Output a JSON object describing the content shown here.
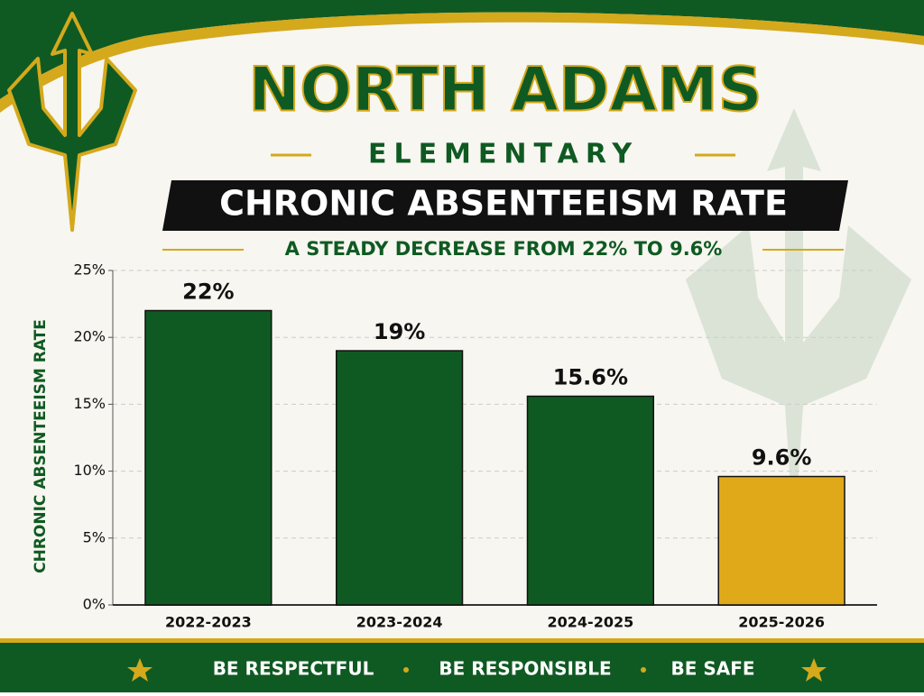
{
  "header": {
    "school": "NORTH ADAMS",
    "subtitle": "ELEMENTARY"
  },
  "chart_data": {
    "type": "bar",
    "title": "CHRONIC ABSENTEEISM RATE",
    "subtitle": "A STEADY DECREASE FROM 22% TO 9.6%",
    "y_label": "CHRONIC ABSENTEEISM RATE",
    "categories": [
      "2022-2023",
      "2023-2024",
      "2024-2025",
      "2025-2026"
    ],
    "values": [
      22,
      19,
      15.6,
      9.6
    ],
    "value_labels": [
      "22%",
      "19%",
      "15.6%",
      "9.6%"
    ],
    "colors": [
      "#0f5a22",
      "#0f5a22",
      "#0f5a22",
      "#e0a91a"
    ],
    "ylim": [
      0,
      25
    ],
    "yticks": [
      {
        "value": 0,
        "label": "0%"
      },
      {
        "value": 5,
        "label": "5%"
      },
      {
        "value": 10,
        "label": "10%"
      },
      {
        "value": 15,
        "label": "15%"
      },
      {
        "value": 20,
        "label": "20%"
      },
      {
        "value": 25,
        "label": "25%"
      }
    ],
    "grid": true
  },
  "footer": {
    "items": [
      "BE RESPECTFUL",
      "BE RESPONSIBLE",
      "BE SAFE"
    ]
  }
}
